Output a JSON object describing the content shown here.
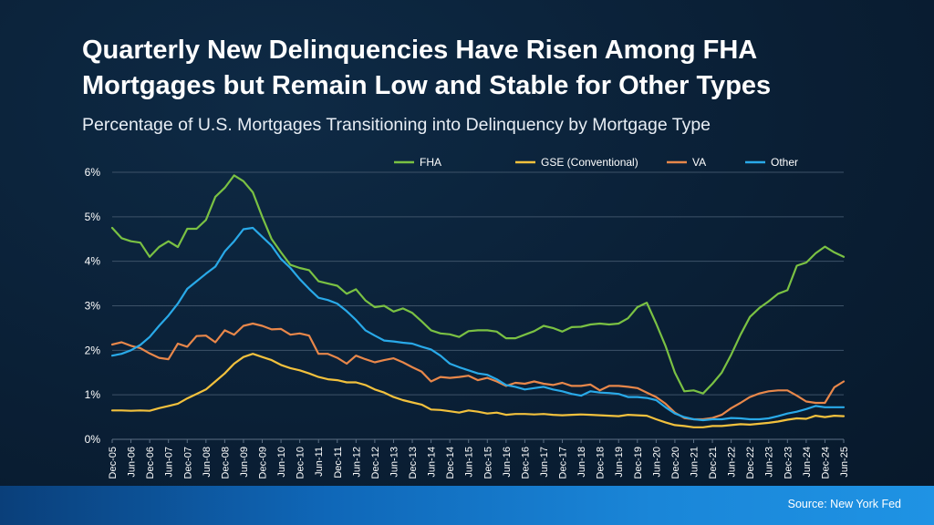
{
  "title": "Quarterly New Delinquencies Have Risen Among FHA Mortgages but Remain Low and Stable for Other Types",
  "subtitle": "Percentage of U.S. Mortgages Transitioning into Delinquency by Mortgage Type",
  "source": "Source: New York Fed",
  "colors": {
    "FHA": "#7ac143",
    "GSE (Conventional)": "#f2c13d",
    "VA": "#e8874a",
    "Other": "#29a9e8",
    "footer_bar": "#1a86d8"
  },
  "chart_data": {
    "type": "line",
    "xlabel": "",
    "ylabel": "",
    "ylim": [
      0,
      6
    ],
    "yticks": [
      "0%",
      "1%",
      "2%",
      "3%",
      "4%",
      "5%",
      "6%"
    ],
    "grid": true,
    "legend_position": "top",
    "x_ticks": [
      "Dec-05",
      "Jun-06",
      "Dec-06",
      "Jun-07",
      "Dec-07",
      "Jun-08",
      "Dec-08",
      "Jun-09",
      "Dec-09",
      "Jun-10",
      "Dec-10",
      "Jun-11",
      "Dec-11",
      "Jun-12",
      "Dec-12",
      "Jun-13",
      "Dec-13",
      "Jun-14",
      "Dec-14",
      "Jun-15",
      "Dec-15",
      "Jun-16",
      "Dec-16",
      "Jun-17",
      "Dec-17",
      "Jun-18",
      "Dec-18",
      "Jun-19",
      "Dec-19",
      "Jun-20",
      "Dec-20",
      "Jun-21",
      "Dec-21",
      "Jun-22",
      "Dec-22",
      "Jun-23",
      "Dec-23",
      "Jun-24",
      "Dec-24",
      "Jun-25"
    ],
    "x": [
      "Q4 2005",
      "Q1 2006",
      "Q2 2006",
      "Q3 2006",
      "Q4 2006",
      "Q1 2007",
      "Q2 2007",
      "Q3 2007",
      "Q4 2007",
      "Q1 2008",
      "Q2 2008",
      "Q3 2008",
      "Q4 2008",
      "Q1 2009",
      "Q2 2009",
      "Q3 2009",
      "Q4 2009",
      "Q1 2010",
      "Q2 2010",
      "Q3 2010",
      "Q4 2010",
      "Q1 2011",
      "Q2 2011",
      "Q3 2011",
      "Q4 2011",
      "Q1 2012",
      "Q2 2012",
      "Q3 2012",
      "Q4 2012",
      "Q1 2013",
      "Q2 2013",
      "Q3 2013",
      "Q4 2013",
      "Q1 2014",
      "Q2 2014",
      "Q3 2014",
      "Q4 2014",
      "Q1 2015",
      "Q2 2015",
      "Q3 2015",
      "Q4 2015",
      "Q1 2016",
      "Q2 2016",
      "Q3 2016",
      "Q4 2016",
      "Q1 2017",
      "Q2 2017",
      "Q3 2017",
      "Q4 2017",
      "Q1 2018",
      "Q2 2018",
      "Q3 2018",
      "Q4 2018",
      "Q1 2019",
      "Q2 2019",
      "Q3 2019",
      "Q4 2019",
      "Q1 2020",
      "Q2 2020",
      "Q3 2020",
      "Q4 2020",
      "Q1 2021",
      "Q2 2021",
      "Q3 2021",
      "Q4 2021",
      "Q1 2022",
      "Q2 2022",
      "Q3 2022",
      "Q4 2022",
      "Q1 2023",
      "Q2 2023",
      "Q3 2023",
      "Q4 2023",
      "Q1 2024",
      "Q2 2024",
      "Q3 2024",
      "Q4 2024",
      "Q1 2025",
      "Q2 2025"
    ],
    "series": [
      {
        "name": "FHA",
        "values": [
          4.75,
          4.52,
          4.45,
          4.42,
          4.1,
          4.32,
          4.45,
          4.32,
          4.73,
          4.73,
          4.93,
          5.45,
          5.65,
          5.93,
          5.8,
          5.55,
          5.0,
          4.5,
          4.2,
          3.92,
          3.85,
          3.8,
          3.55,
          3.5,
          3.45,
          3.27,
          3.37,
          3.12,
          2.97,
          3.0,
          2.87,
          2.94,
          2.84,
          2.65,
          2.45,
          2.38,
          2.36,
          2.3,
          2.43,
          2.45,
          2.45,
          2.42,
          2.27,
          2.27,
          2.35,
          2.43,
          2.55,
          2.5,
          2.42,
          2.52,
          2.53,
          2.58,
          2.6,
          2.58,
          2.6,
          2.72,
          2.97,
          3.07,
          2.6,
          2.1,
          1.5,
          1.08,
          1.1,
          1.03,
          1.25,
          1.5,
          1.9,
          2.35,
          2.75,
          2.95,
          3.1,
          3.27,
          3.35,
          3.9,
          3.97,
          4.18,
          4.33,
          4.2,
          4.1
        ]
      },
      {
        "name": "GSE (Conventional)",
        "values": [
          0.65,
          0.65,
          0.64,
          0.65,
          0.64,
          0.7,
          0.75,
          0.8,
          0.92,
          1.02,
          1.12,
          1.3,
          1.48,
          1.7,
          1.85,
          1.92,
          1.85,
          1.78,
          1.67,
          1.6,
          1.55,
          1.48,
          1.4,
          1.35,
          1.33,
          1.28,
          1.28,
          1.22,
          1.12,
          1.05,
          0.95,
          0.88,
          0.83,
          0.78,
          0.67,
          0.66,
          0.63,
          0.6,
          0.65,
          0.62,
          0.58,
          0.6,
          0.55,
          0.57,
          0.57,
          0.56,
          0.57,
          0.55,
          0.54,
          0.55,
          0.56,
          0.55,
          0.54,
          0.53,
          0.52,
          0.55,
          0.54,
          0.53,
          0.45,
          0.38,
          0.32,
          0.3,
          0.27,
          0.27,
          0.3,
          0.3,
          0.32,
          0.34,
          0.33,
          0.35,
          0.37,
          0.4,
          0.44,
          0.47,
          0.46,
          0.53,
          0.5,
          0.53,
          0.52
        ]
      },
      {
        "name": "VA",
        "values": [
          2.13,
          2.18,
          2.1,
          2.05,
          1.93,
          1.83,
          1.8,
          2.15,
          2.08,
          2.32,
          2.33,
          2.18,
          2.45,
          2.35,
          2.55,
          2.6,
          2.55,
          2.47,
          2.48,
          2.35,
          2.38,
          2.33,
          1.92,
          1.92,
          1.83,
          1.7,
          1.88,
          1.8,
          1.73,
          1.78,
          1.82,
          1.73,
          1.62,
          1.52,
          1.3,
          1.4,
          1.38,
          1.4,
          1.43,
          1.33,
          1.38,
          1.3,
          1.2,
          1.27,
          1.25,
          1.3,
          1.25,
          1.22,
          1.27,
          1.2,
          1.2,
          1.23,
          1.1,
          1.2,
          1.2,
          1.18,
          1.15,
          1.05,
          0.95,
          0.8,
          0.6,
          0.48,
          0.45,
          0.45,
          0.48,
          0.55,
          0.7,
          0.82,
          0.95,
          1.03,
          1.08,
          1.1,
          1.1,
          0.98,
          0.85,
          0.82,
          0.82,
          1.17,
          1.3
        ]
      },
      {
        "name": "Other",
        "values": [
          1.88,
          1.92,
          2.0,
          2.12,
          2.3,
          2.55,
          2.78,
          3.05,
          3.38,
          3.55,
          3.72,
          3.88,
          4.22,
          4.45,
          4.72,
          4.75,
          4.55,
          4.35,
          4.05,
          3.85,
          3.6,
          3.38,
          3.18,
          3.13,
          3.05,
          2.88,
          2.68,
          2.45,
          2.33,
          2.22,
          2.2,
          2.17,
          2.15,
          2.08,
          2.02,
          1.88,
          1.7,
          1.62,
          1.55,
          1.48,
          1.45,
          1.35,
          1.22,
          1.18,
          1.12,
          1.15,
          1.18,
          1.12,
          1.08,
          1.02,
          0.98,
          1.08,
          1.05,
          1.04,
          1.02,
          0.95,
          0.95,
          0.93,
          0.88,
          0.72,
          0.58,
          0.5,
          0.45,
          0.43,
          0.45,
          0.45,
          0.48,
          0.47,
          0.45,
          0.45,
          0.47,
          0.52,
          0.58,
          0.62,
          0.68,
          0.75,
          0.72,
          0.72,
          0.72
        ]
      }
    ]
  }
}
